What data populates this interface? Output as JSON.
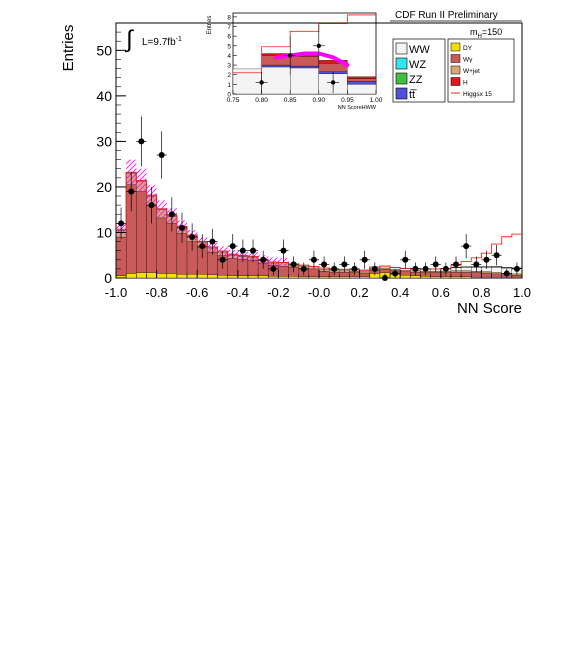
{
  "figure": {
    "header": "CDF Run II Preliminary",
    "lumi_prefix": "L=9.7fb",
    "lumi_exp": "-1",
    "mass_label_m": "m",
    "mass_label_sub": "H",
    "mass_label_val": "=150"
  },
  "legend": {
    "left": [
      {
        "label": "WW",
        "color": "#f4f4f4"
      },
      {
        "label": "WZ",
        "color": "#2ee6ee"
      },
      {
        "label": "ZZ",
        "color": "#40c040"
      },
      {
        "label": "tt̅",
        "color": "#5050d8"
      }
    ],
    "right": [
      {
        "label": "DY",
        "color": "#f2e000"
      },
      {
        "label": "Wγ",
        "color": "#c85a5a"
      },
      {
        "label": "W+jet",
        "color": "#d8a878"
      },
      {
        "label": "H",
        "color": "#e01818"
      },
      {
        "label": "Higgsx 15",
        "color": "#ff2020",
        "style": "line"
      }
    ]
  },
  "chart_data": [
    {
      "type": "bar",
      "name": "main",
      "xlabel": "NN Score",
      "ylabel": "Entries",
      "xlim": [
        -1.0,
        1.0
      ],
      "ylim": [
        0,
        56
      ],
      "xticks": [
        "-1.0",
        "-0.8",
        "-0.6",
        "-0.4",
        "-0.2",
        "-0.0",
        "0.2",
        "0.4",
        "0.6",
        "0.8",
        "1.0"
      ],
      "yticks": [
        "0",
        "10",
        "20",
        "30",
        "40",
        "50"
      ],
      "bins": 40,
      "stack": [
        {
          "name": "DY",
          "color": "#f2e000",
          "values": [
            0.5,
            1.0,
            1.2,
            1.2,
            1.0,
            1.0,
            0.8,
            0.8,
            0.8,
            0.7,
            0.6,
            0.5,
            0.5,
            0.5,
            0.5,
            0.4,
            0.4,
            0.4,
            0.3,
            0.3,
            0.3,
            0.3,
            0.3,
            0.3,
            0.3,
            1.0,
            1.2,
            0.8,
            0.6,
            0.5,
            0.4,
            0.3,
            0.3,
            0.3,
            0.3,
            0.2,
            0.2,
            0.2,
            0.2,
            0.2
          ]
        },
        {
          "name": "Wgamma",
          "color": "#c85a5a",
          "values": [
            8.5,
            19.5,
            17.8,
            14.8,
            12.2,
            11.0,
            9.0,
            7.2,
            6.0,
            5.0,
            4.3,
            3.8,
            3.6,
            3.4,
            2.8,
            2.4,
            2.2,
            2.0,
            1.8,
            1.5,
            1.2,
            1.0,
            1.0,
            0.9,
            0.8,
            0.7,
            0.7,
            0.8,
            0.8,
            0.8,
            0.8,
            0.9,
            0.9,
            1.0,
            1.0,
            1.0,
            0.9,
            0.7,
            0.5,
            0.4
          ]
        },
        {
          "name": "W+jet",
          "color": "#d8a878",
          "values": [
            1.5,
            2.5,
            2.2,
            2.0,
            1.8,
            1.5,
            1.3,
            1.2,
            1.0,
            0.9,
            0.8,
            0.7,
            0.6,
            0.6,
            0.5,
            0.5,
            0.5,
            0.4,
            0.4,
            0.4,
            0.4,
            0.3,
            0.3,
            0.3,
            0.3,
            0.3,
            0.3,
            0.3,
            0.3,
            0.3,
            0.3,
            0.3,
            0.3,
            0.3,
            0.3,
            0.3,
            0.3,
            0.3,
            0.3,
            0.3
          ]
        },
        {
          "name": "WW",
          "color": "#f4f4f4",
          "values": [
            0.2,
            0.2,
            0.2,
            0.2,
            0.2,
            0.2,
            0.2,
            0.2,
            0.2,
            0.2,
            0.2,
            0.2,
            0.2,
            0.2,
            0.2,
            0.2,
            0.3,
            0.3,
            0.3,
            0.3,
            0.3,
            0.3,
            0.3,
            0.3,
            0.3,
            0.4,
            0.4,
            0.4,
            0.4,
            0.5,
            0.5,
            0.5,
            0.6,
            0.7,
            0.8,
            0.9,
            1.0,
            1.2,
            1.2,
            1.2
          ]
        },
        {
          "name": "H",
          "color": "#e01818",
          "values": [
            0,
            0,
            0,
            0,
            0,
            0,
            0,
            0,
            0,
            0,
            0,
            0,
            0,
            0,
            0,
            0,
            0,
            0,
            0,
            0,
            0,
            0,
            0,
            0,
            0,
            0,
            0,
            0,
            0,
            0,
            0,
            0,
            0,
            0,
            0.02,
            0.03,
            0.05,
            0.06,
            0.06,
            0.05
          ]
        }
      ],
      "signal_x15": [
        0,
        0,
        0,
        0,
        0,
        0,
        0,
        0,
        0,
        0,
        0,
        0,
        0,
        0,
        0,
        0,
        0,
        0,
        0,
        0,
        0,
        0,
        0,
        0,
        0,
        0,
        0,
        0,
        0,
        0,
        0,
        0,
        0,
        0.5,
        1.2,
        2.0,
        3.0,
        5.0,
        6.8,
        7.5
      ],
      "hatch_band": {
        "color": "#ff00ff",
        "from_bin": 0,
        "to_bin": 16
      },
      "data_points": {
        "x": [
          -0.975,
          -0.925,
          -0.875,
          -0.825,
          -0.775,
          -0.725,
          -0.675,
          -0.625,
          -0.575,
          -0.525,
          -0.475,
          -0.425,
          -0.375,
          -0.325,
          -0.275,
          -0.225,
          -0.175,
          -0.125,
          -0.075,
          -0.025,
          0.025,
          0.075,
          0.125,
          0.175,
          0.225,
          0.275,
          0.325,
          0.375,
          0.425,
          0.475,
          0.525,
          0.575,
          0.625,
          0.675,
          0.725,
          0.775,
          0.825,
          0.875,
          0.925,
          0.975
        ],
        "y": [
          12,
          19,
          30,
          16,
          27,
          14,
          11,
          9,
          7,
          8,
          4,
          7,
          6,
          6,
          4,
          2,
          6,
          3,
          2,
          4,
          3,
          2,
          3,
          2,
          4,
          2,
          0,
          1,
          4,
          2,
          2,
          3,
          2,
          3,
          7,
          3,
          4,
          5,
          1,
          2
        ]
      }
    },
    {
      "type": "bar",
      "name": "inset",
      "xlabel": "NN ScoreHWW",
      "ylabel": "Entries",
      "xlim": [
        0.75,
        1.0
      ],
      "ylim": [
        0,
        8.4
      ],
      "xticks": [
        "0.75",
        "0.80",
        "0.85",
        "0.90",
        "0.95",
        "1.00"
      ],
      "yticks": [
        "0",
        "1",
        "2",
        "3",
        "4",
        "5",
        "6",
        "7",
        "8"
      ],
      "bin_edges": [
        0.75,
        0.8,
        0.85,
        0.9,
        0.95,
        1.0
      ],
      "stack": [
        {
          "name": "WW",
          "color": "#f4f4f4",
          "values": [
            2.6,
            2.8,
            2.7,
            2.1,
            1.0
          ]
        },
        {
          "name": "ttbar",
          "color": "#5050d8",
          "values": [
            0,
            0.2,
            0.2,
            0.2,
            0.3
          ]
        },
        {
          "name": "Wgamma",
          "color": "#c85a5a",
          "values": [
            0,
            1.0,
            1.0,
            0.9,
            0.3
          ]
        },
        {
          "name": "H",
          "color": "#e01818",
          "values": [
            0,
            0.2,
            0.3,
            0.3,
            0.2
          ]
        }
      ],
      "signal_x15": [
        2.2,
        4.9,
        6.5,
        7.3,
        8.2
      ],
      "magenta_curve": {
        "x": [
          0.825,
          0.85,
          0.875,
          0.9,
          0.925,
          0.95
        ],
        "y": [
          3.8,
          4.0,
          4.2,
          4.2,
          3.8,
          3.0
        ]
      },
      "data_points": {
        "x": [
          0.8,
          0.85,
          0.9,
          0.925
        ],
        "y": [
          1.2,
          4.0,
          5.0,
          1.2
        ],
        "err": [
          1.1,
          2.0,
          2.2,
          1.1
        ]
      }
    }
  ]
}
